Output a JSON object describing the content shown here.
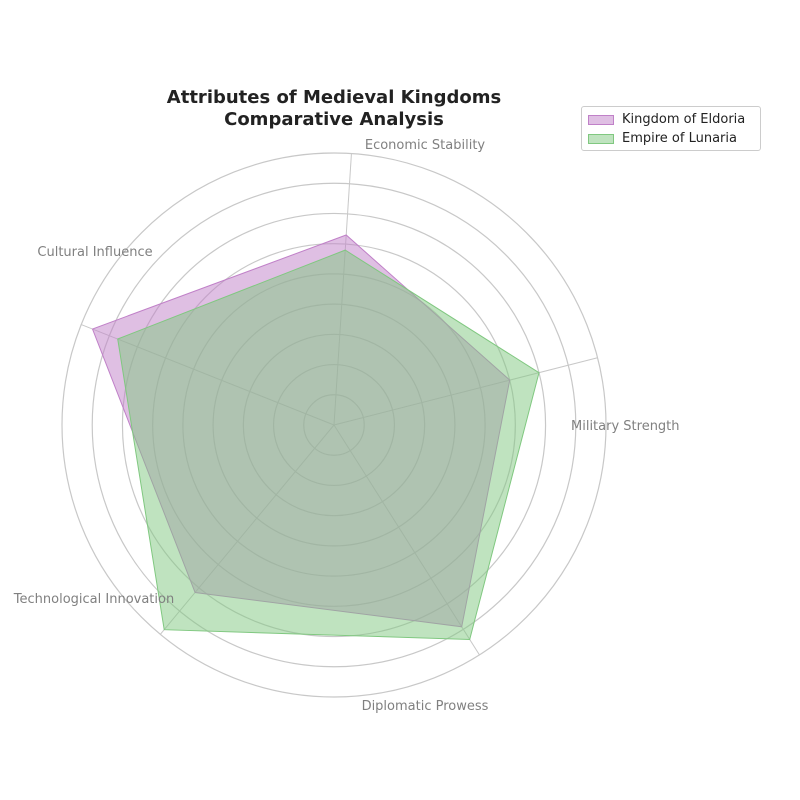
{
  "chart_data": {
    "type": "radar",
    "title_lines": [
      "Attributes of Medieval Kingdoms",
      "Comparative Analysis"
    ],
    "axes": [
      "Military Strength",
      "Economic Stability",
      "Cultural Influence",
      "Technological Innovation",
      "Diplomatic Prowess"
    ],
    "rlim": [
      0,
      9
    ],
    "ring_count": 9,
    "grid": true,
    "legend_position": "top-right",
    "series": [
      {
        "name": "Kingdom of Eldoria",
        "values": [
          6,
          6.3,
          8.6,
          7.2,
          7.9
        ],
        "color": "#c080c8"
      },
      {
        "name": "Empire of Lunaria",
        "values": [
          7,
          5.8,
          7.7,
          8.8,
          8.4
        ],
        "color": "#80c880"
      }
    ],
    "legend": [
      "Kingdom of Eldoria",
      "Empire of Lunaria"
    ]
  }
}
